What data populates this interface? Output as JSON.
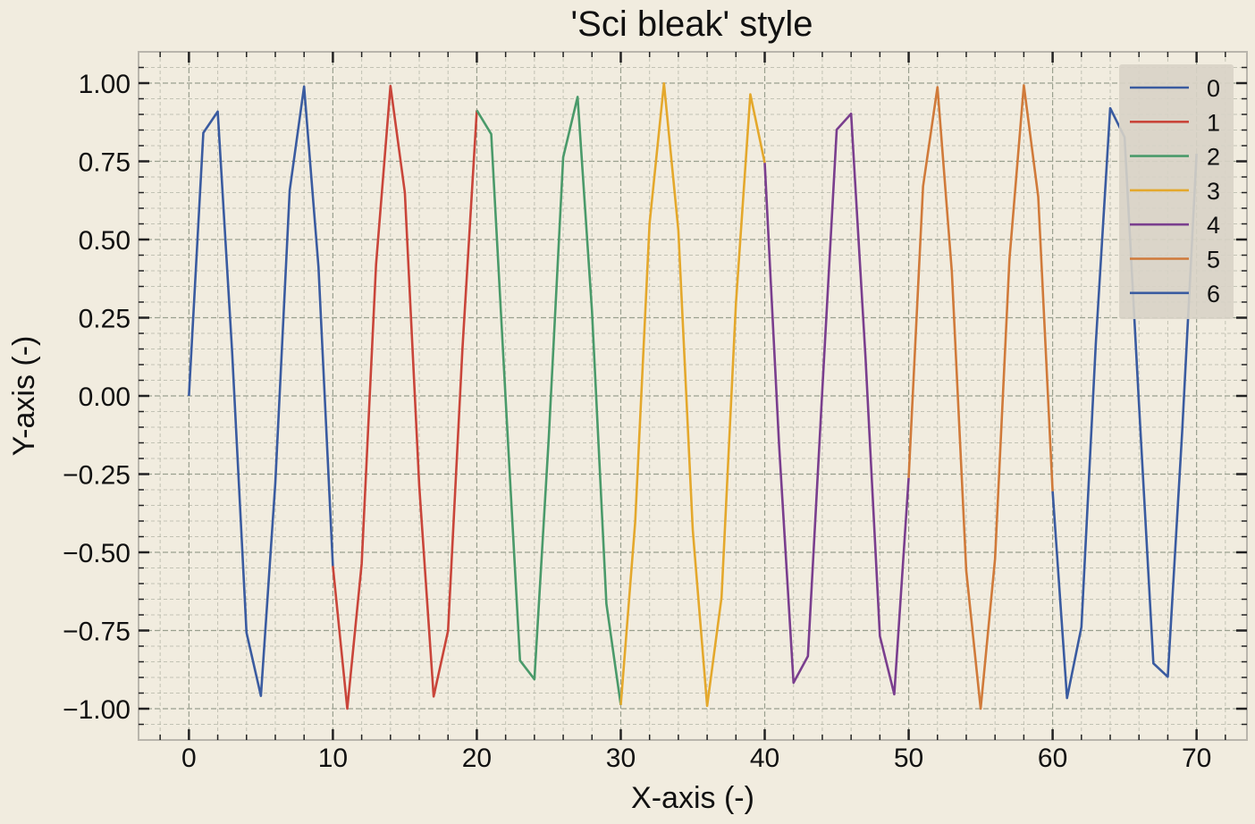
{
  "chart_data": {
    "type": "line",
    "title": "'Sci bleak' style",
    "xlabel": "X-axis (-)",
    "ylabel": "Y-axis (-)",
    "xlim": [
      -3.5,
      73.5
    ],
    "ylim": [
      -1.1,
      1.1
    ],
    "xticks": [
      0,
      10,
      20,
      30,
      40,
      50,
      60,
      70
    ],
    "xtick_labels": [
      "0",
      "10",
      "20",
      "30",
      "40",
      "50",
      "60",
      "70"
    ],
    "yticks": [
      1.0,
      0.75,
      0.5,
      0.25,
      0.0,
      -0.25,
      -0.5,
      -0.75,
      -1.0
    ],
    "ytick_labels": [
      "1.00",
      "0.75",
      "0.50",
      "0.25",
      "0.00",
      "−0.25",
      "−0.50",
      "−0.75",
      "−1.00"
    ],
    "grid": true,
    "legend_position": "top-right",
    "colors": {
      "background": "#f1ecdf",
      "legend_bg": "#d8d3c6",
      "grid": "#9aa08f",
      "axis": "#222222"
    },
    "series": [
      {
        "name": "0",
        "color": "#3a5ba0",
        "x": [
          0,
          1,
          2,
          3,
          4,
          5,
          6,
          7,
          8,
          9,
          10
        ],
        "y": [
          0.0,
          0.841,
          0.909,
          0.141,
          -0.757,
          -0.959,
          -0.279,
          0.657,
          0.989,
          0.412,
          -0.544
        ]
      },
      {
        "name": "1",
        "color": "#c9453a",
        "x": [
          10,
          11,
          12,
          13,
          14,
          15,
          16,
          17,
          18,
          19,
          20
        ],
        "y": [
          -0.544,
          -1.0,
          -0.537,
          0.42,
          0.991,
          0.65,
          -0.288,
          -0.961,
          -0.751,
          0.15,
          0.913
        ]
      },
      {
        "name": "2",
        "color": "#4a9a6a",
        "x": [
          20,
          21,
          22,
          23,
          24,
          25,
          26,
          27,
          28,
          29,
          30
        ],
        "y": [
          0.913,
          0.837,
          -0.009,
          -0.846,
          -0.906,
          -0.132,
          0.763,
          0.956,
          0.271,
          -0.664,
          -0.988
        ]
      },
      {
        "name": "3",
        "color": "#e4a82c",
        "x": [
          30,
          31,
          32,
          33,
          34,
          35,
          36,
          37,
          38,
          39,
          40
        ],
        "y": [
          -0.988,
          -0.404,
          0.551,
          0.999,
          0.529,
          -0.428,
          -0.991,
          -0.644,
          0.296,
          0.964,
          0.745
        ]
      },
      {
        "name": "4",
        "color": "#7a3e8e",
        "x": [
          40,
          41,
          42,
          43,
          44,
          45,
          46,
          47,
          48,
          49,
          50
        ],
        "y": [
          0.745,
          -0.159,
          -0.917,
          -0.832,
          0.018,
          0.851,
          0.902,
          0.124,
          -0.768,
          -0.954,
          -0.262
        ]
      },
      {
        "name": "5",
        "color": "#d07a3a",
        "x": [
          50,
          51,
          52,
          53,
          54,
          55,
          56,
          57,
          58,
          59,
          60
        ],
        "y": [
          -0.262,
          0.67,
          0.987,
          0.396,
          -0.559,
          -1.0,
          -0.521,
          0.436,
          0.993,
          0.637,
          -0.305
        ]
      },
      {
        "name": "6",
        "color": "#3a5ba0",
        "x": [
          60,
          61,
          62,
          63,
          64,
          65,
          66,
          67,
          68,
          69,
          70
        ],
        "y": [
          -0.305,
          -0.966,
          -0.739,
          0.168,
          0.92,
          0.827,
          -0.027,
          -0.855,
          -0.898,
          -0.114,
          0.774
        ]
      }
    ]
  }
}
